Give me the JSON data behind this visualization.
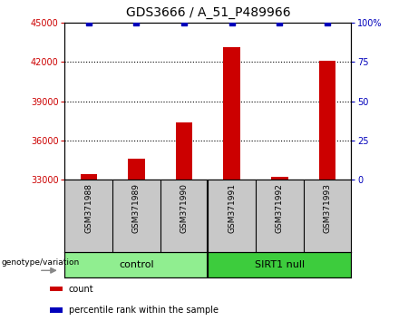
{
  "title": "GDS3666 / A_51_P489966",
  "samples": [
    "GSM371988",
    "GSM371989",
    "GSM371990",
    "GSM371991",
    "GSM371992",
    "GSM371993"
  ],
  "counts": [
    33450,
    34600,
    37400,
    43100,
    33200,
    42100
  ],
  "percentile_ranks": [
    100,
    100,
    100,
    100,
    100,
    100
  ],
  "ylim_left": [
    33000,
    45000
  ],
  "ylim_right": [
    0,
    100
  ],
  "yticks_left": [
    33000,
    36000,
    39000,
    42000,
    45000
  ],
  "yticks_right": [
    0,
    25,
    50,
    75,
    100
  ],
  "groups": [
    {
      "label": "control",
      "indices": [
        0,
        1,
        2
      ],
      "color": "#90EE90"
    },
    {
      "label": "SIRT1 null",
      "indices": [
        3,
        4,
        5
      ],
      "color": "#3DCC3D"
    }
  ],
  "bar_color": "#CC0000",
  "marker_color": "#0000BB",
  "background_plot": "#FFFFFF",
  "background_sample": "#C8C8C8",
  "left_tick_color": "#CC0000",
  "right_tick_color": "#0000BB",
  "legend_items": [
    {
      "label": "count",
      "color": "#CC0000"
    },
    {
      "label": "percentile rank within the sample",
      "color": "#0000BB"
    }
  ],
  "genotype_label": "genotype/variation"
}
